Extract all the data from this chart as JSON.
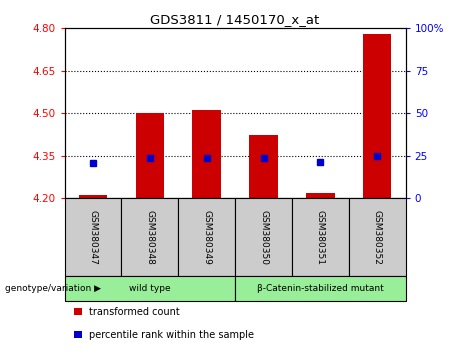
{
  "title": "GDS3811 / 1450170_x_at",
  "samples": [
    "GSM380347",
    "GSM380348",
    "GSM380349",
    "GSM380350",
    "GSM380351",
    "GSM380352"
  ],
  "bar_values": [
    4.21,
    4.5,
    4.51,
    4.425,
    4.22,
    4.78
  ],
  "bar_bottom": 4.2,
  "percentile_values": [
    4.325,
    4.343,
    4.343,
    4.343,
    4.328,
    4.35
  ],
  "ylim": [
    4.2,
    4.8
  ],
  "yticks_left": [
    4.2,
    4.35,
    4.5,
    4.65,
    4.8
  ],
  "yticks_right": [
    0,
    25,
    50,
    75,
    100
  ],
  "gridlines": [
    4.35,
    4.5,
    4.65
  ],
  "bar_color": "#cc0000",
  "percentile_color": "#0000cc",
  "group_labels": [
    "wild type",
    "β-Catenin-stabilized mutant"
  ],
  "group_ranges": [
    [
      0,
      3
    ],
    [
      3,
      6
    ]
  ],
  "group_color": "#99ee99",
  "sample_box_color": "#cccccc",
  "genotype_label": "genotype/variation",
  "legend_items": [
    "transformed count",
    "percentile rank within the sample"
  ],
  "legend_colors": [
    "#cc0000",
    "#0000cc"
  ]
}
